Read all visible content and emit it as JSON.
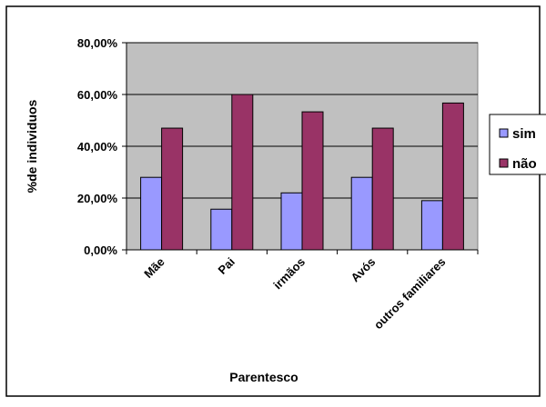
{
  "chart_data": {
    "type": "bar",
    "title": "",
    "xlabel": "Parentesco",
    "ylabel": "%de individuos",
    "categories": [
      "Mãe",
      "Pai",
      "irmãos",
      "Avós",
      "outros familiares"
    ],
    "series": [
      {
        "name": "sim",
        "color": "#9999ff",
        "values": [
          0.28,
          0.157,
          0.22,
          0.28,
          0.19
        ]
      },
      {
        "name": "não",
        "color": "#993366",
        "values": [
          0.47,
          0.6,
          0.533,
          0.47,
          0.567
        ]
      }
    ],
    "ylim": [
      0,
      0.8
    ],
    "yticks": [
      0,
      0.2,
      0.4,
      0.6,
      0.8
    ],
    "ytick_labels": [
      "0,00%",
      "20,00%",
      "40,00%",
      "60,00%",
      "80,00%"
    ],
    "grid": true,
    "plot_background": "#c0c0c0",
    "legend_position": "right"
  }
}
